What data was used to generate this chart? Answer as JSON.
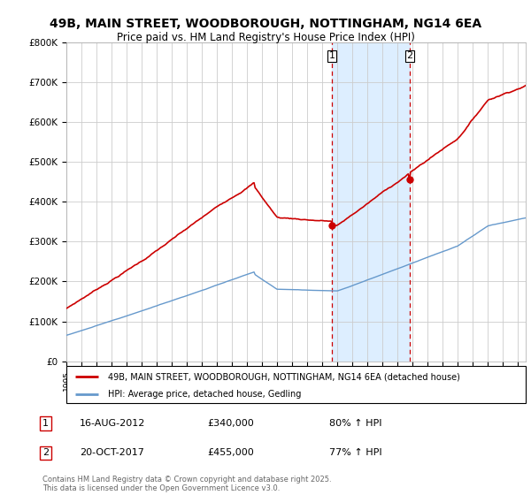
{
  "title": "49B, MAIN STREET, WOODBOROUGH, NOTTINGHAM, NG14 6EA",
  "subtitle": "Price paid vs. HM Land Registry's House Price Index (HPI)",
  "legend_line1": "49B, MAIN STREET, WOODBOROUGH, NOTTINGHAM, NG14 6EA (detached house)",
  "legend_line2": "HPI: Average price, detached house, Gedling",
  "annotation1_date": "16-AUG-2012",
  "annotation1_price": "£340,000",
  "annotation1_hpi": "80% ↑ HPI",
  "annotation2_date": "20-OCT-2017",
  "annotation2_price": "£455,000",
  "annotation2_hpi": "77% ↑ HPI",
  "footer": "Contains HM Land Registry data © Crown copyright and database right 2025.\nThis data is licensed under the Open Government Licence v3.0.",
  "red_color": "#cc0000",
  "blue_color": "#6699cc",
  "highlight_color": "#ddeeff",
  "background_color": "#ffffff",
  "grid_color": "#cccccc",
  "ylim": [
    0,
    800000
  ],
  "yticks": [
    0,
    100000,
    200000,
    300000,
    400000,
    500000,
    600000,
    700000,
    800000
  ],
  "ytick_labels": [
    "£0",
    "£100K",
    "£200K",
    "£300K",
    "£400K",
    "£500K",
    "£600K",
    "£700K",
    "£800K"
  ],
  "sale1_x": 2012.625,
  "sale1_y": 340000,
  "sale2_x": 2017.792,
  "sale2_y": 455000,
  "xmin": 1995,
  "xmax": 2025.5
}
